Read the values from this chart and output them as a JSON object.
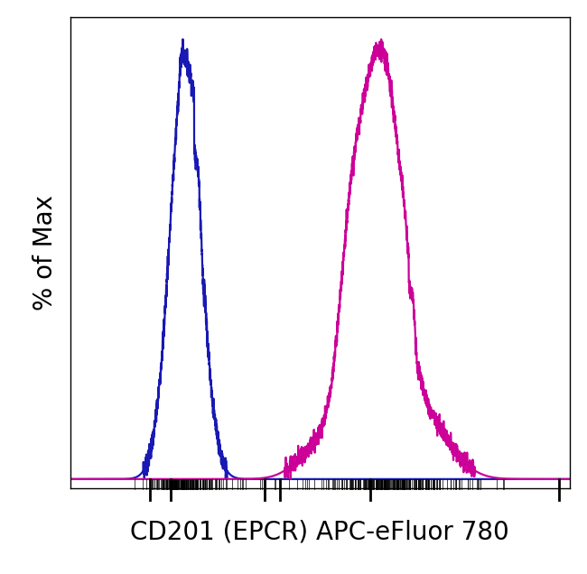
{
  "xlabel": "CD201 (EPCR) APC-eFluor 780",
  "ylabel": "% of Max",
  "xlabel_fontsize": 20,
  "ylabel_fontsize": 20,
  "blue_color": "#1919b3",
  "magenta_color": "#cc0099",
  "background_color": "#ffffff",
  "line_width": 1.6,
  "xlim": [
    0,
    1000
  ],
  "ylim": [
    -0.02,
    1.05
  ]
}
